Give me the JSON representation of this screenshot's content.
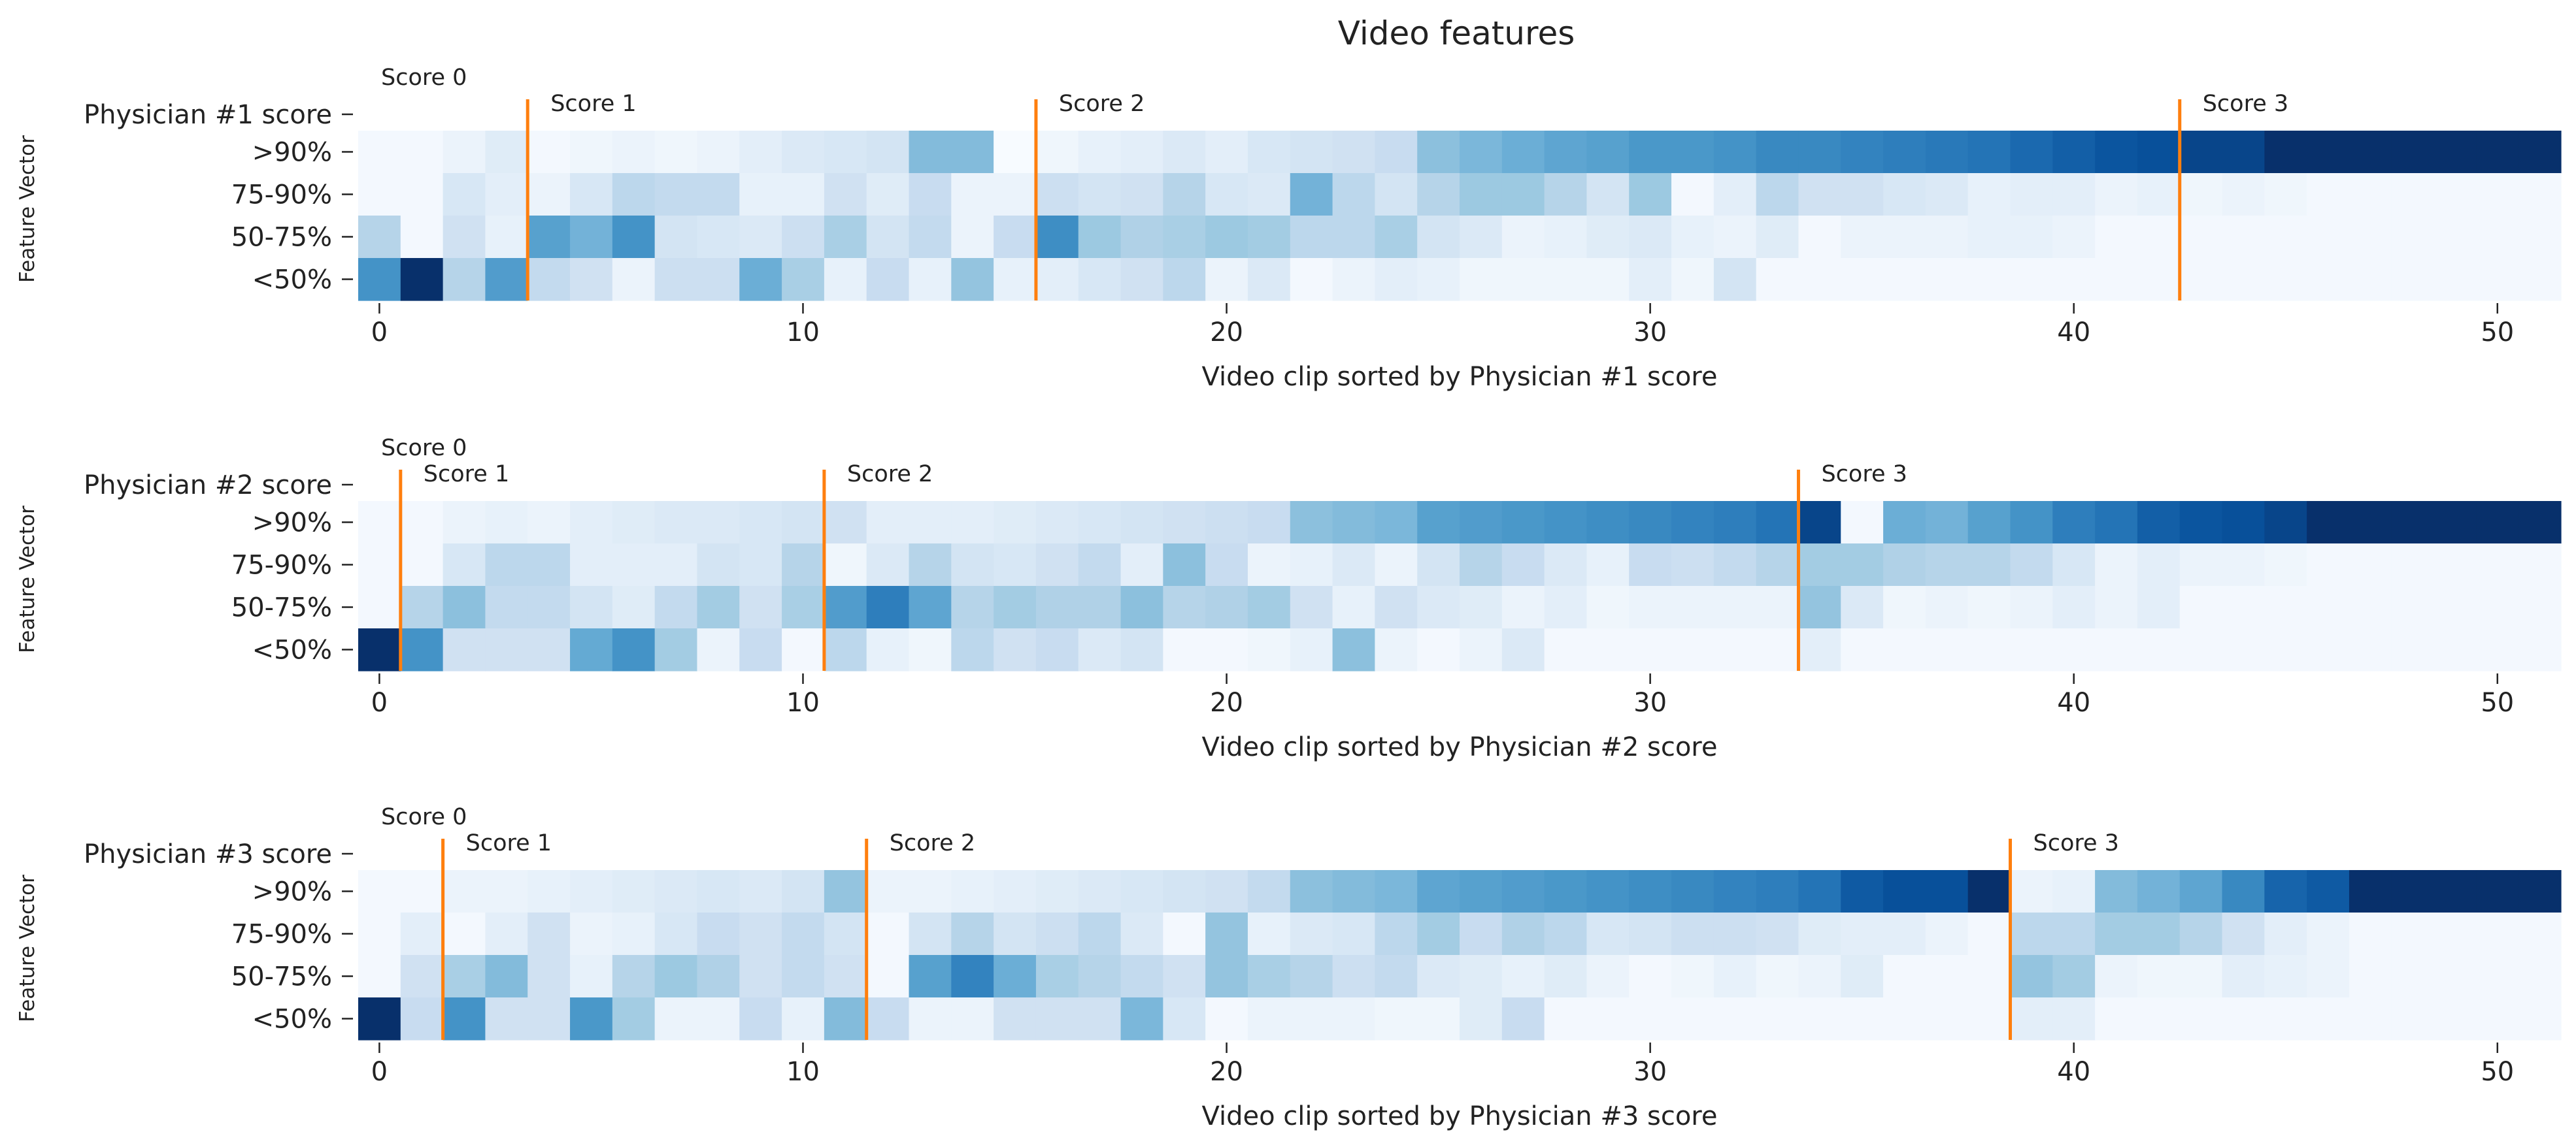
{
  "chart_data": {
    "title": "Video features",
    "type": "heatmap",
    "colormap": "Blues",
    "value_range": [
      0,
      1
    ],
    "row_labels": [
      ">90%",
      "75-90%",
      "50-75%",
      "<50%"
    ],
    "x_ticks": [
      0,
      10,
      20,
      30,
      40,
      50
    ],
    "n_columns": 52,
    "panels": [
      {
        "score_row_label": "Physician #1 score",
        "xlabel": "Video clip sorted by Physician #1 score",
        "ylabel": "Feature Vector",
        "score_boundaries": [
          {
            "label": "Score 0",
            "x": -0.5
          },
          {
            "label": "Score 1",
            "x": 3.5
          },
          {
            "label": "Score 2",
            "x": 15.5
          },
          {
            "label": "Score 3",
            "x": 42.5
          }
        ],
        "rows": [
          [
            0.02,
            0.02,
            0.06,
            0.12,
            0.02,
            0.04,
            0.06,
            0.04,
            0.06,
            0.1,
            0.14,
            0.16,
            0.18,
            0.44,
            0.44,
            0.0,
            0.04,
            0.08,
            0.1,
            0.14,
            0.1,
            0.16,
            0.18,
            0.2,
            0.24,
            0.42,
            0.46,
            0.5,
            0.54,
            0.56,
            0.6,
            0.6,
            0.62,
            0.66,
            0.66,
            0.68,
            0.7,
            0.72,
            0.74,
            0.78,
            0.82,
            0.86,
            0.88,
            0.92,
            0.92,
            1.0,
            1.0,
            1.0,
            1.0,
            1.0,
            1.0,
            1.0
          ],
          [
            0.02,
            0.02,
            0.16,
            0.1,
            0.06,
            0.16,
            0.28,
            0.26,
            0.26,
            0.08,
            0.08,
            0.2,
            0.12,
            0.24,
            0.06,
            0.06,
            0.22,
            0.18,
            0.2,
            0.3,
            0.16,
            0.14,
            0.48,
            0.28,
            0.18,
            0.3,
            0.38,
            0.38,
            0.3,
            0.18,
            0.38,
            0.02,
            0.1,
            0.28,
            0.2,
            0.2,
            0.16,
            0.14,
            0.08,
            0.1,
            0.1,
            0.06,
            0.08,
            0.04,
            0.06,
            0.04,
            0.02,
            0.02,
            0.02,
            0.02,
            0.02,
            0.02
          ],
          [
            0.3,
            0.02,
            0.2,
            0.08,
            0.56,
            0.48,
            0.62,
            0.18,
            0.16,
            0.14,
            0.22,
            0.34,
            0.18,
            0.26,
            0.06,
            0.24,
            0.64,
            0.38,
            0.32,
            0.34,
            0.38,
            0.36,
            0.28,
            0.28,
            0.34,
            0.18,
            0.14,
            0.06,
            0.08,
            0.12,
            0.14,
            0.08,
            0.06,
            0.12,
            0.02,
            0.06,
            0.06,
            0.06,
            0.08,
            0.08,
            0.06,
            0.02,
            0.02,
            0.02,
            0.02,
            0.02,
            0.02,
            0.02,
            0.02,
            0.02,
            0.02,
            0.02
          ],
          [
            0.62,
            1.0,
            0.3,
            0.58,
            0.26,
            0.2,
            0.06,
            0.22,
            0.22,
            0.5,
            0.34,
            0.08,
            0.24,
            0.08,
            0.4,
            0.08,
            0.1,
            0.16,
            0.2,
            0.28,
            0.06,
            0.14,
            0.02,
            0.06,
            0.1,
            0.08,
            0.04,
            0.04,
            0.04,
            0.04,
            0.1,
            0.04,
            0.18,
            0.02,
            0.02,
            0.02,
            0.02,
            0.02,
            0.02,
            0.02,
            0.02,
            0.02,
            0.02,
            0.02,
            0.02,
            0.02,
            0.02,
            0.02,
            0.02,
            0.02,
            0.02,
            0.02
          ]
        ]
      },
      {
        "score_row_label": "Physician #2 score",
        "xlabel": "Video clip sorted by Physician #2 score",
        "ylabel": "Feature Vector",
        "score_boundaries": [
          {
            "label": "Score 0",
            "x": -0.5
          },
          {
            "label": "Score 1",
            "x": 0.5
          },
          {
            "label": "Score 2",
            "x": 10.5
          },
          {
            "label": "Score 3",
            "x": 33.5
          }
        ],
        "rows": [
          [
            0.02,
            0.02,
            0.06,
            0.08,
            0.06,
            0.1,
            0.12,
            0.14,
            0.14,
            0.16,
            0.18,
            0.2,
            0.1,
            0.1,
            0.1,
            0.12,
            0.14,
            0.16,
            0.18,
            0.2,
            0.22,
            0.24,
            0.42,
            0.44,
            0.46,
            0.56,
            0.58,
            0.6,
            0.62,
            0.64,
            0.66,
            0.68,
            0.7,
            0.74,
            0.92,
            0.02,
            0.5,
            0.48,
            0.56,
            0.62,
            0.7,
            0.74,
            0.82,
            0.86,
            0.88,
            0.92,
            1.0,
            1.0,
            1.0,
            1.0,
            1.0,
            1.0
          ],
          [
            0.02,
            0.02,
            0.16,
            0.28,
            0.28,
            0.1,
            0.1,
            0.1,
            0.18,
            0.16,
            0.3,
            0.04,
            0.14,
            0.3,
            0.18,
            0.16,
            0.2,
            0.26,
            0.1,
            0.42,
            0.24,
            0.06,
            0.08,
            0.14,
            0.06,
            0.18,
            0.3,
            0.24,
            0.14,
            0.08,
            0.24,
            0.22,
            0.26,
            0.3,
            0.36,
            0.36,
            0.32,
            0.3,
            0.3,
            0.26,
            0.16,
            0.06,
            0.1,
            0.06,
            0.06,
            0.04,
            0.02,
            0.02,
            0.02,
            0.02,
            0.02,
            0.02
          ],
          [
            0.02,
            0.3,
            0.42,
            0.26,
            0.26,
            0.18,
            0.12,
            0.26,
            0.36,
            0.2,
            0.34,
            0.58,
            0.7,
            0.54,
            0.3,
            0.36,
            0.32,
            0.32,
            0.42,
            0.3,
            0.32,
            0.36,
            0.2,
            0.08,
            0.2,
            0.14,
            0.12,
            0.06,
            0.1,
            0.04,
            0.06,
            0.06,
            0.06,
            0.06,
            0.4,
            0.14,
            0.04,
            0.06,
            0.04,
            0.06,
            0.1,
            0.06,
            0.1,
            0.02,
            0.02,
            0.02,
            0.02,
            0.02,
            0.02,
            0.02,
            0.02,
            0.02
          ],
          [
            1.0,
            0.62,
            0.2,
            0.2,
            0.2,
            0.52,
            0.62,
            0.36,
            0.06,
            0.24,
            0.02,
            0.28,
            0.08,
            0.04,
            0.28,
            0.2,
            0.24,
            0.14,
            0.18,
            0.02,
            0.02,
            0.04,
            0.08,
            0.42,
            0.06,
            0.02,
            0.06,
            0.14,
            0.02,
            0.02,
            0.02,
            0.02,
            0.02,
            0.02,
            0.1,
            0.02,
            0.02,
            0.02,
            0.02,
            0.02,
            0.02,
            0.02,
            0.02,
            0.02,
            0.02,
            0.02,
            0.02,
            0.02,
            0.02,
            0.02,
            0.02,
            0.02
          ]
        ]
      },
      {
        "score_row_label": "Physician #3 score",
        "xlabel": "Video clip sorted by Physician #3 score",
        "ylabel": "Feature Vector",
        "score_boundaries": [
          {
            "label": "Score 0",
            "x": -0.5
          },
          {
            "label": "Score 1",
            "x": 1.5
          },
          {
            "label": "Score 2",
            "x": 11.5
          },
          {
            "label": "Score 3",
            "x": 38.5
          }
        ],
        "rows": [
          [
            0.02,
            0.02,
            0.06,
            0.06,
            0.08,
            0.1,
            0.12,
            0.14,
            0.16,
            0.14,
            0.18,
            0.4,
            0.06,
            0.06,
            0.08,
            0.1,
            0.12,
            0.14,
            0.16,
            0.18,
            0.2,
            0.26,
            0.42,
            0.44,
            0.46,
            0.54,
            0.56,
            0.58,
            0.6,
            0.62,
            0.64,
            0.66,
            0.68,
            0.7,
            0.74,
            0.84,
            0.88,
            0.88,
            1.0,
            0.06,
            0.08,
            0.44,
            0.48,
            0.54,
            0.66,
            0.8,
            0.84,
            1.0,
            1.0,
            1.0,
            1.0,
            1.0
          ],
          [
            0.02,
            0.1,
            0.02,
            0.1,
            0.2,
            0.06,
            0.08,
            0.16,
            0.24,
            0.2,
            0.26,
            0.18,
            0.02,
            0.18,
            0.3,
            0.18,
            0.22,
            0.28,
            0.14,
            0.02,
            0.4,
            0.08,
            0.14,
            0.16,
            0.28,
            0.36,
            0.24,
            0.32,
            0.28,
            0.16,
            0.18,
            0.22,
            0.22,
            0.2,
            0.12,
            0.1,
            0.1,
            0.06,
            0.02,
            0.28,
            0.28,
            0.36,
            0.36,
            0.3,
            0.2,
            0.1,
            0.06,
            0.02,
            0.02,
            0.02,
            0.02,
            0.02
          ],
          [
            0.02,
            0.2,
            0.34,
            0.44,
            0.2,
            0.08,
            0.3,
            0.38,
            0.32,
            0.2,
            0.26,
            0.2,
            0.02,
            0.56,
            0.68,
            0.5,
            0.34,
            0.3,
            0.26,
            0.2,
            0.4,
            0.34,
            0.3,
            0.22,
            0.26,
            0.14,
            0.12,
            0.08,
            0.12,
            0.06,
            0.02,
            0.04,
            0.08,
            0.04,
            0.06,
            0.12,
            0.02,
            0.02,
            0.02,
            0.4,
            0.36,
            0.06,
            0.04,
            0.04,
            0.1,
            0.08,
            0.06,
            0.02,
            0.02,
            0.02,
            0.02,
            0.02
          ],
          [
            1.0,
            0.24,
            0.62,
            0.2,
            0.2,
            0.6,
            0.36,
            0.06,
            0.06,
            0.24,
            0.08,
            0.44,
            0.24,
            0.06,
            0.06,
            0.2,
            0.2,
            0.2,
            0.46,
            0.16,
            0.02,
            0.06,
            0.06,
            0.06,
            0.04,
            0.04,
            0.12,
            0.24,
            0.02,
            0.02,
            0.02,
            0.02,
            0.02,
            0.02,
            0.02,
            0.02,
            0.02,
            0.02,
            0.02,
            0.1,
            0.1,
            0.02,
            0.02,
            0.02,
            0.02,
            0.02,
            0.02,
            0.02,
            0.02,
            0.02,
            0.02,
            0.02
          ]
        ]
      }
    ]
  }
}
